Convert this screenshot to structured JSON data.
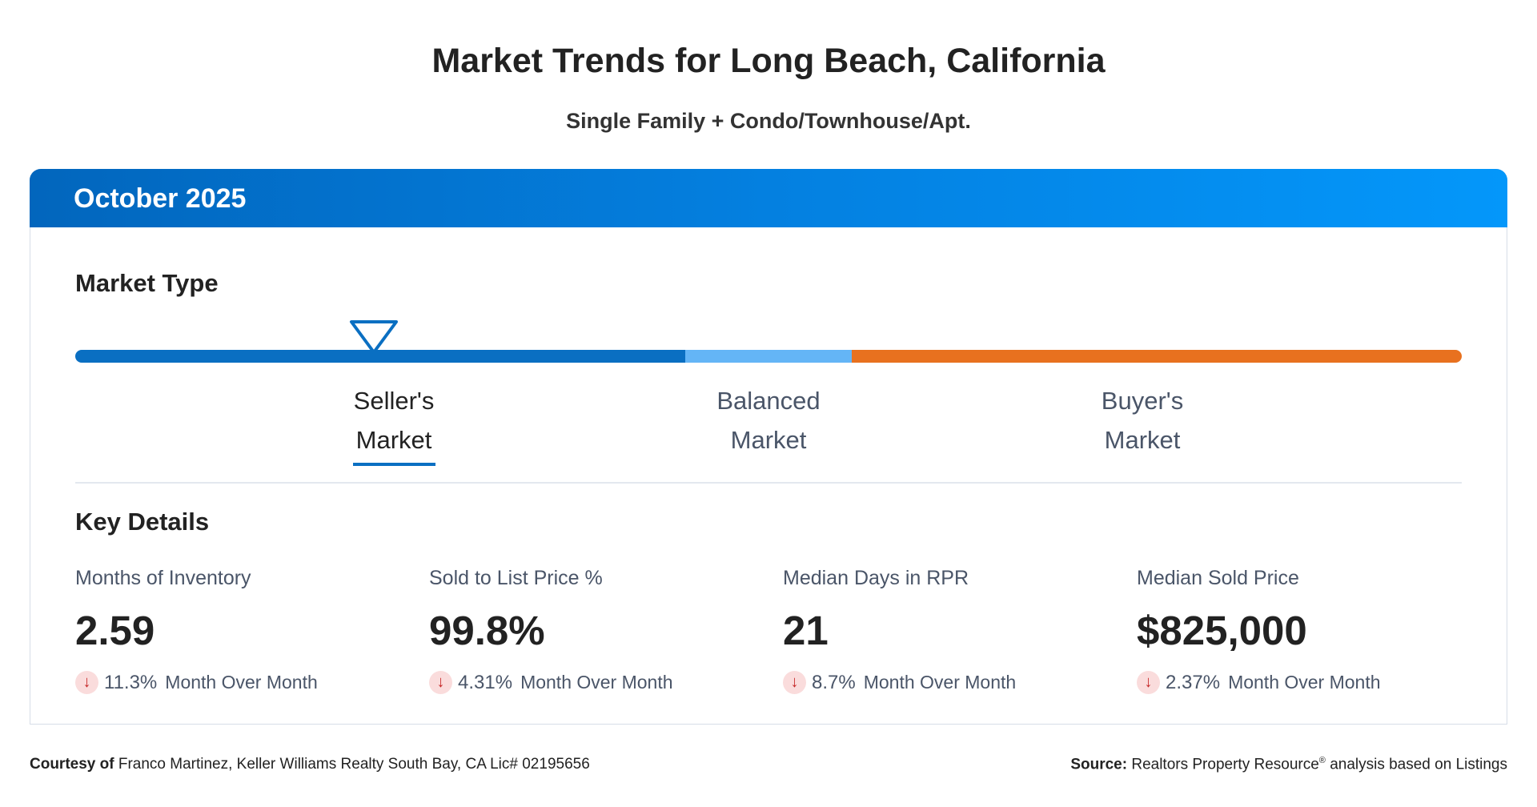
{
  "title": "Market Trends for Long Beach, California",
  "subtitle": "Single Family + Condo/Townhouse/Apt.",
  "period": "October 2025",
  "market_type": {
    "label": "Market Type",
    "current": "Seller's Market",
    "segments": [
      {
        "line1": "Seller's",
        "line2": "Market",
        "color": "#0a6fc2",
        "active": true
      },
      {
        "line1": "Balanced",
        "line2": "Market",
        "color": "#64b5f6",
        "active": false
      },
      {
        "line1": "Buyer's",
        "line2": "Market",
        "color": "#e8711f",
        "active": false
      }
    ]
  },
  "key_details": {
    "label": "Key Details",
    "items": [
      {
        "label": "Months of Inventory",
        "value": "2.59",
        "change": "11.3%",
        "direction": "down",
        "change_label": "Month Over Month"
      },
      {
        "label": "Sold to List Price %",
        "value": "99.8%",
        "change": "4.31%",
        "direction": "down",
        "change_label": "Month Over Month"
      },
      {
        "label": "Median Days in RPR",
        "value": "21",
        "change": "8.7%",
        "direction": "down",
        "change_label": "Month Over Month"
      },
      {
        "label": "Median Sold Price",
        "value": "$825,000",
        "change": "2.37%",
        "direction": "down",
        "change_label": "Month Over Month"
      }
    ]
  },
  "footer": {
    "courtesy_label": "Courtesy of",
    "courtesy_text": "Franco Martinez, Keller Williams Realty South Bay, CA Lic# 02195656",
    "source_label": "Source:",
    "source_text": "Realtors Property Resource",
    "source_mark": "®",
    "source_suffix": "analysis based on Listings"
  },
  "colors": {
    "header_start": "#0266bd",
    "header_end": "#0497fa",
    "down": "#c62828"
  }
}
